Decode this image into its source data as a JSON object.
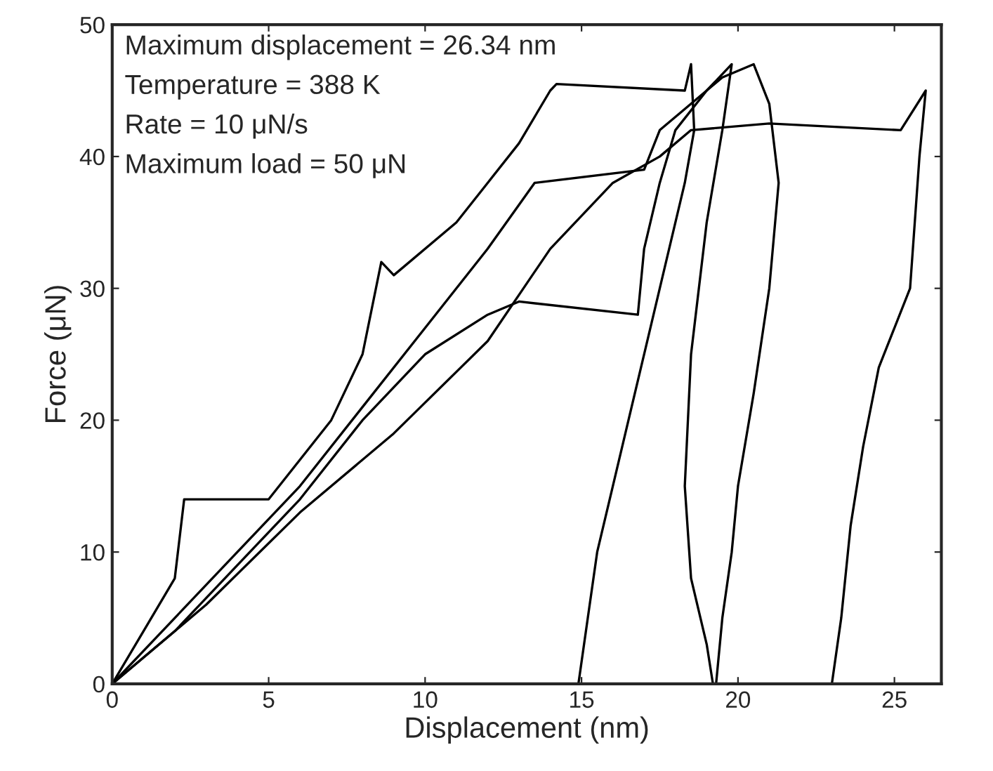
{
  "chart_data": {
    "type": "line",
    "xlabel": "Displacement (nm)",
    "ylabel": "Force (μN)",
    "annotations": [
      "Maximum displacement = 26.34 nm",
      "Temperature = 388 K",
      "Rate = 10 μN/s",
      "Maximum load = 50 μN"
    ],
    "xlim": [
      0,
      26.5
    ],
    "ylim": [
      0,
      50
    ],
    "xticks": [
      0,
      5,
      10,
      15,
      20,
      25
    ],
    "yticks": [
      0,
      10,
      20,
      30,
      40,
      50
    ],
    "grid": false,
    "line_style": "solid",
    "marker": "none",
    "series": [
      {
        "color": "#000000",
        "x": [
          0,
          1,
          2,
          2.3,
          5,
          6,
          7,
          8,
          8.6,
          9,
          11,
          12,
          13,
          14,
          14.2,
          18.3,
          18.5,
          18.6,
          18.3,
          17.5,
          17,
          16.5,
          16,
          15.5,
          15.2,
          14.9
        ],
        "values": [
          0,
          4,
          8,
          14,
          14,
          17,
          20,
          25,
          32,
          31,
          35,
          38,
          41,
          45,
          45.5,
          45,
          47,
          42,
          38,
          30,
          25,
          20,
          15,
          10,
          5,
          0
        ]
      },
      {
        "color": "#000000",
        "x": [
          0,
          2,
          4,
          6,
          8,
          10,
          12,
          13.5,
          17,
          17.5,
          18.5,
          19.5,
          20.5,
          21,
          21.3,
          21,
          20.5,
          20,
          19.8,
          19.5,
          19.3
        ],
        "values": [
          0,
          5,
          10,
          15,
          21,
          27,
          33,
          38,
          39,
          42,
          44,
          46,
          47,
          44,
          38,
          30,
          22,
          15,
          10,
          5,
          0
        ]
      },
      {
        "color": "#000000",
        "x": [
          0,
          2,
          4,
          6,
          8,
          10,
          12,
          13,
          16.8,
          17,
          17.5,
          18,
          19,
          19.8,
          19.5,
          19,
          18.5,
          18.3,
          18.5,
          19,
          19.2
        ],
        "values": [
          0,
          4,
          9,
          14,
          20,
          25,
          28,
          29,
          28,
          33,
          38,
          42,
          45,
          47,
          42,
          35,
          25,
          15,
          8,
          3,
          0
        ]
      },
      {
        "color": "#000000",
        "x": [
          0,
          3,
          6,
          9,
          12,
          14,
          16,
          17.5,
          18.5,
          21,
          25.2,
          26,
          25.8,
          25.5,
          24.5,
          24,
          23.6,
          23.3,
          23
        ],
        "values": [
          0,
          6,
          13,
          19,
          26,
          33,
          38,
          40,
          42,
          42.5,
          42,
          45,
          40,
          30,
          24,
          18,
          12,
          5,
          0
        ]
      }
    ]
  }
}
